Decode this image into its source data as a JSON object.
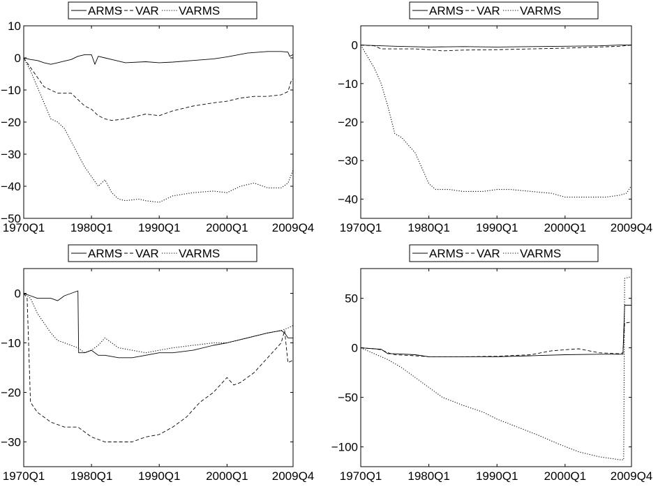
{
  "legend_labels": [
    "ARMS",
    "VAR",
    "VARMS"
  ],
  "chart_data": [
    {
      "type": "line",
      "title": "",
      "xlabel": "",
      "ylabel": "",
      "xlim": [
        1970.0,
        2009.75
      ],
      "ylim": [
        -50,
        10
      ],
      "x_ticks": [
        1970.0,
        1980.0,
        1990.0,
        2000.0,
        2009.75
      ],
      "x_tick_labels": [
        "1970Q1",
        "1980Q1",
        "1990Q1",
        "2000Q1",
        "2009Q4"
      ],
      "y_ticks": [
        10,
        0,
        -10,
        -20,
        -30,
        -40,
        -50
      ],
      "y_tick_labels": [
        "10",
        "0",
        "−10",
        "−20",
        "−30",
        "−40",
        "−50"
      ],
      "legend": "top-center",
      "grid": false,
      "series": [
        {
          "name": "ARMS",
          "style": "solid",
          "x": [
            1970,
            1971,
            1972,
            1973,
            1974,
            1975,
            1976,
            1977,
            1978,
            1979,
            1980,
            1980.5,
            1981,
            1982,
            1983,
            1985,
            1988,
            1990,
            1992,
            1995,
            1998,
            2000,
            2003,
            2006,
            2008,
            2009,
            2009.25,
            2009.75
          ],
          "y": [
            0,
            -0.5,
            -0.8,
            -1.5,
            -2,
            -1.5,
            -1,
            -0.5,
            0.5,
            1,
            1,
            -2,
            0.5,
            0,
            -0.5,
            -1.5,
            -1.2,
            -1.5,
            -1.3,
            -0.8,
            -0.3,
            0.3,
            1.5,
            2,
            2,
            1.8,
            0.5,
            1
          ]
        },
        {
          "name": "VAR",
          "style": "dashed",
          "x": [
            1970,
            1971,
            1972,
            1973,
            1974,
            1975,
            1976,
            1977,
            1978,
            1979,
            1980,
            1981,
            1982,
            1983,
            1985,
            1987,
            1988,
            1990,
            1992,
            1995,
            1998,
            2000,
            2002,
            2004,
            2006,
            2008,
            2009,
            2009.5,
            2009.75
          ],
          "y": [
            0,
            -3,
            -6,
            -9,
            -10,
            -11,
            -11,
            -11,
            -13,
            -15,
            -16,
            -18,
            -19,
            -19.5,
            -19,
            -18,
            -17.5,
            -18,
            -16.5,
            -15,
            -14,
            -13.5,
            -12.5,
            -12,
            -12,
            -11.5,
            -10.5,
            -7,
            -6.5
          ]
        },
        {
          "name": "VARMS",
          "style": "dotted",
          "x": [
            1970,
            1971,
            1972,
            1973,
            1974,
            1975,
            1976,
            1977,
            1978,
            1979,
            1980,
            1981,
            1982,
            1983,
            1984,
            1985,
            1987,
            1988,
            1990,
            1992,
            1995,
            1998,
            2000,
            2002,
            2004,
            2006,
            2008,
            2009,
            2009.75
          ],
          "y": [
            0,
            -4,
            -9,
            -14,
            -19,
            -20,
            -22,
            -26,
            -30,
            -34,
            -37,
            -40,
            -38,
            -42,
            -44,
            -44.5,
            -44,
            -44.5,
            -45,
            -43,
            -42,
            -41.5,
            -42,
            -40,
            -39,
            -40.5,
            -40.5,
            -39,
            -35
          ]
        }
      ]
    },
    {
      "type": "line",
      "title": "",
      "xlabel": "",
      "ylabel": "",
      "xlim": [
        1970.0,
        2009.75
      ],
      "ylim": [
        -45,
        5
      ],
      "x_ticks": [
        1970.0,
        1980.0,
        1990.0,
        2000.0,
        2009.75
      ],
      "x_tick_labels": [
        "1970Q1",
        "1980Q1",
        "1990Q1",
        "2000Q1",
        "2009Q4"
      ],
      "y_ticks": [
        0,
        -10,
        -20,
        -30,
        -40
      ],
      "y_tick_labels": [
        "0",
        "−10",
        "−20",
        "−30",
        "−40"
      ],
      "legend": "top-center",
      "grid": false,
      "series": [
        {
          "name": "ARMS",
          "style": "solid",
          "x": [
            1970,
            1975,
            1980,
            1985,
            1990,
            1995,
            2000,
            2005,
            2008,
            2009.75
          ],
          "y": [
            0,
            -0.3,
            -0.5,
            -0.4,
            -0.5,
            -0.4,
            -0.3,
            -0.2,
            0,
            0
          ]
        },
        {
          "name": "VAR",
          "style": "dashed",
          "x": [
            1970,
            1972,
            1973,
            1975,
            1978,
            1980,
            1982,
            1985,
            1990,
            1995,
            2000,
            2005,
            2008,
            2009.75
          ],
          "y": [
            0,
            -0.2,
            -1,
            -1,
            -1,
            -1.2,
            -1.5,
            -1.3,
            -1.2,
            -1,
            -0.8,
            -0.5,
            -0.3,
            0
          ]
        },
        {
          "name": "VARMS",
          "style": "dotted",
          "x": [
            1970,
            1971,
            1972,
            1973,
            1974,
            1975,
            1976,
            1977,
            1978,
            1979,
            1980,
            1981,
            1983,
            1985,
            1988,
            1990,
            1992,
            1995,
            1998,
            2000,
            2002,
            2004,
            2006,
            2008,
            2009,
            2009.75
          ],
          "y": [
            0,
            -3,
            -6,
            -10,
            -16,
            -23,
            -24,
            -26,
            -28,
            -32,
            -36,
            -37.5,
            -37.5,
            -38,
            -38,
            -37.5,
            -37.5,
            -38,
            -38.5,
            -39.5,
            -39.5,
            -39.5,
            -39.5,
            -39,
            -38.5,
            -36.5
          ]
        }
      ]
    },
    {
      "type": "line",
      "title": "",
      "xlabel": "",
      "ylabel": "",
      "xlim": [
        1970.0,
        2009.75
      ],
      "ylim": [
        -35,
        5
      ],
      "x_ticks": [
        1970.0,
        1980.0,
        1990.0,
        2000.0,
        2009.75
      ],
      "x_tick_labels": [
        "1970Q1",
        "1980Q1",
        "1990Q1",
        "2000Q1",
        "2009Q4"
      ],
      "y_ticks": [
        0,
        -10,
        -20,
        -30
      ],
      "y_tick_labels": [
        "0",
        "−10",
        "−20",
        "−30"
      ],
      "legend": "top-center",
      "grid": false,
      "series": [
        {
          "name": "ARMS",
          "style": "solid",
          "x": [
            1970,
            1971,
            1972,
            1974,
            1975,
            1976,
            1977,
            1978,
            1978.1,
            1979,
            1980,
            1981,
            1982,
            1984,
            1986,
            1988,
            1990,
            1992,
            1995,
            1998,
            2000,
            2003,
            2006,
            2008,
            2008.5,
            2009,
            2009.75
          ],
          "y": [
            0,
            -0.5,
            -1,
            -1,
            -1.5,
            -0.5,
            0,
            0.5,
            -12,
            -12,
            -11.5,
            -12.5,
            -12.5,
            -13,
            -13,
            -12.5,
            -12,
            -12,
            -11.5,
            -10.5,
            -10,
            -9,
            -8,
            -7.5,
            -8,
            -9,
            -9
          ]
        },
        {
          "name": "VAR",
          "style": "dashed",
          "x": [
            1970,
            1970.5,
            1971,
            1972,
            1974,
            1976,
            1978,
            1980,
            1982,
            1984,
            1986,
            1988,
            1990,
            1992,
            1994,
            1996,
            1998,
            2000,
            2001,
            2002,
            2004,
            2006,
            2008,
            2008.5,
            2009,
            2009.75
          ],
          "y": [
            0,
            -1,
            -22,
            -24,
            -26,
            -27,
            -27,
            -29,
            -30,
            -30,
            -30,
            -29,
            -28.5,
            -27,
            -25,
            -22,
            -20,
            -17,
            -18.5,
            -18,
            -16,
            -13,
            -10,
            -7.5,
            -14,
            -13.5
          ]
        },
        {
          "name": "VARMS",
          "style": "dotted",
          "x": [
            1970,
            1971,
            1972,
            1973,
            1974,
            1975,
            1976,
            1978,
            1979,
            1980,
            1981,
            1982,
            1984,
            1986,
            1988,
            1990,
            1992,
            1995,
            1998,
            2000,
            2003,
            2006,
            2008,
            2009,
            2009.75
          ],
          "y": [
            0,
            -1,
            -4,
            -6,
            -8,
            -9.5,
            -10,
            -11,
            -12,
            -11.5,
            -10.5,
            -9,
            -11,
            -11.5,
            -12,
            -11.5,
            -11,
            -10.5,
            -10,
            -10,
            -9,
            -8,
            -7.5,
            -7,
            -6.5
          ]
        }
      ]
    },
    {
      "type": "line",
      "title": "",
      "xlabel": "",
      "ylabel": "",
      "xlim": [
        1970.0,
        2009.75
      ],
      "ylim": [
        -120,
        80
      ],
      "x_ticks": [
        1970.0,
        1980.0,
        1990.0,
        2000.0,
        2009.75
      ],
      "x_tick_labels": [
        "1970Q1",
        "1980Q1",
        "1990Q1",
        "2000Q1",
        "2009Q4"
      ],
      "y_ticks": [
        50,
        0,
        -50,
        -100
      ],
      "y_tick_labels": [
        "50",
        "0",
        "−50",
        "−100"
      ],
      "legend": "top-center",
      "grid": false,
      "series": [
        {
          "name": "ARMS",
          "style": "solid",
          "x": [
            1970,
            1972,
            1973,
            1974,
            1975,
            1978,
            1980,
            1985,
            1990,
            1995,
            2000,
            2005,
            2008,
            2008.5,
            2008.75,
            2009.75
          ],
          "y": [
            0,
            -1,
            -1.5,
            -6,
            -6,
            -7,
            -9,
            -9,
            -9,
            -8,
            -7,
            -6.5,
            -6.5,
            -6.5,
            43,
            43
          ]
        },
        {
          "name": "VAR",
          "style": "dashed",
          "x": [
            1970,
            1972,
            1973,
            1974,
            1975,
            1978,
            1980,
            1985,
            1990,
            1995,
            1998,
            2000,
            2002,
            2005,
            2008,
            2008.5,
            2008.75,
            2009.75
          ],
          "y": [
            0,
            -1,
            -2,
            -5,
            -7,
            -8,
            -9,
            -9,
            -8.5,
            -7,
            -3,
            -2,
            -1,
            -5,
            -6,
            -5,
            25,
            26
          ]
        },
        {
          "name": "VARMS",
          "style": "dotted",
          "x": [
            1970,
            1972,
            1974,
            1976,
            1978,
            1980,
            1982,
            1985,
            1988,
            1990,
            1993,
            1996,
            1999,
            2002,
            2005,
            2007,
            2008,
            2008.6,
            2008.75,
            2009.75
          ],
          "y": [
            0,
            -6,
            -12,
            -20,
            -30,
            -40,
            -50,
            -58,
            -65,
            -72,
            -80,
            -88,
            -97,
            -105,
            -110,
            -112,
            -113,
            -113,
            70,
            72
          ]
        }
      ]
    }
  ]
}
